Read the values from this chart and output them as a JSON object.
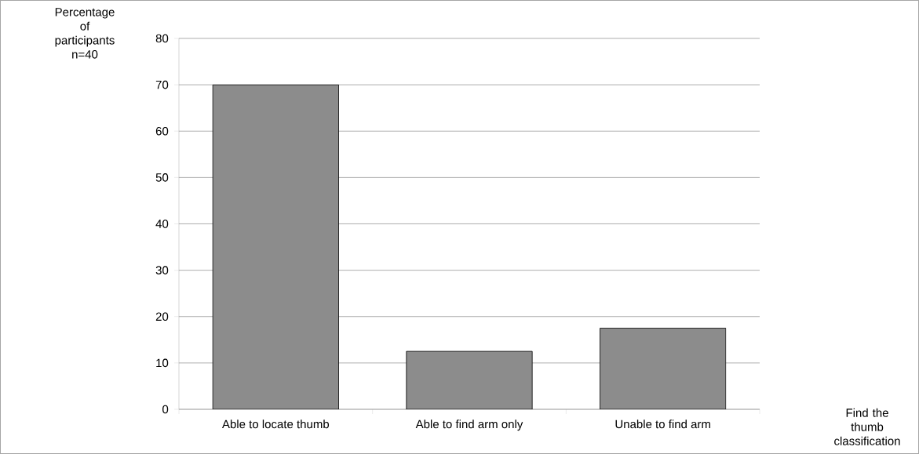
{
  "chart_data": {
    "type": "bar",
    "ylabel": "Percentage of participants n=40",
    "annotations": [
      "Find the thumb classification"
    ],
    "categories": [
      "Able to locate thumb",
      "Able to find arm only",
      "Unable to find arm"
    ],
    "values": [
      70,
      12.5,
      17.5
    ],
    "color": "#8c8c8c",
    "ylim": [
      0,
      80
    ],
    "yticks": [
      0,
      10,
      20,
      30,
      40,
      50,
      60,
      70,
      80
    ],
    "grid": "y"
  }
}
